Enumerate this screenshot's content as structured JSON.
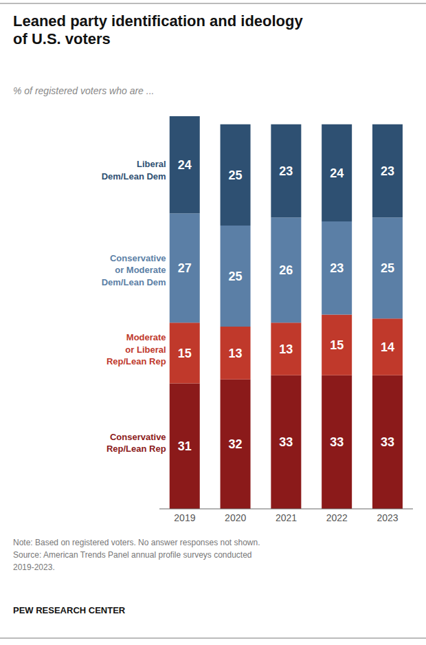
{
  "chart_data": {
    "type": "bar",
    "stacked": true,
    "title": "Leaned party identification and ideology\nof U.S. voters",
    "subtitle": "% of registered voters who are ...",
    "annotations": [
      "Note: Based on registered voters. No answer responses not shown.\nSource: American Trends Panel annual profile surveys conducted\n2019-2023.",
      "PEW RESEARCH CENTER"
    ],
    "categories": [
      "2019",
      "2020",
      "2021",
      "2022",
      "2023"
    ],
    "series": [
      {
        "name": "Conservative\nRep/Lean Rep",
        "color": "#8B1A1A",
        "values": [
          31,
          32,
          33,
          33,
          33
        ]
      },
      {
        "name": "Moderate\nor Liberal\nRep/Lean Rep",
        "color": "#C0392B",
        "values": [
          15,
          13,
          13,
          15,
          14
        ]
      },
      {
        "name": "Conservative\nor Moderate\nDem/Lean Dem",
        "color": "#5B7FA6",
        "values": [
          27,
          25,
          26,
          23,
          25
        ]
      },
      {
        "name": "Liberal\nDem/Lean Dem",
        "color": "#2E5072",
        "values": [
          24,
          25,
          23,
          24,
          23
        ]
      }
    ],
    "ylim": [
      0,
      97
    ],
    "data_labels": true,
    "tick_labels": "x",
    "grid": false
  }
}
